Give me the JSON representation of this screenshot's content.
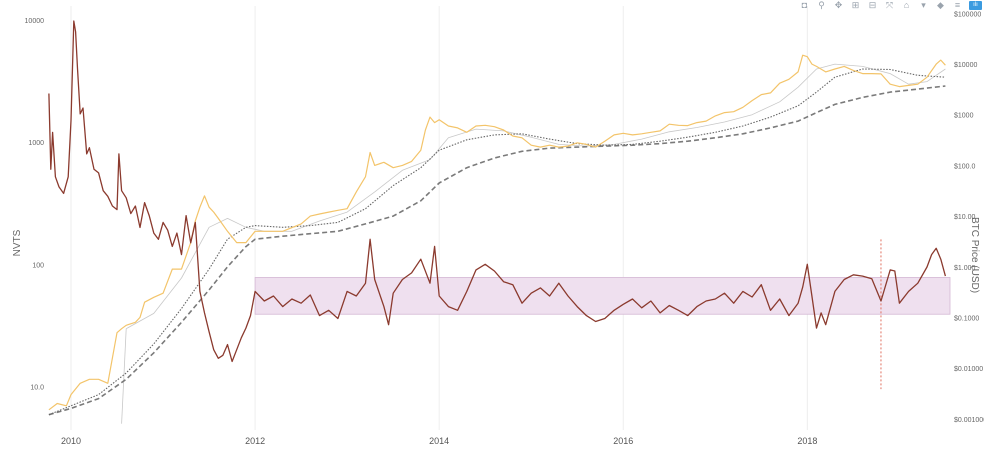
{
  "toolbar": {
    "buttons": [
      {
        "name": "camera-icon",
        "glyph": "◘"
      },
      {
        "name": "zoom-icon",
        "glyph": "⚲"
      },
      {
        "name": "pan-icon",
        "glyph": "✥"
      },
      {
        "name": "zoom-in-icon",
        "glyph": "⊞"
      },
      {
        "name": "zoom-out-icon",
        "glyph": "⊟"
      },
      {
        "name": "autoscale-icon",
        "glyph": "⤧"
      },
      {
        "name": "home-icon",
        "glyph": "⌂"
      },
      {
        "name": "hover-closest-icon",
        "glyph": "▾"
      },
      {
        "name": "hover-compare-icon",
        "glyph": "◆"
      },
      {
        "name": "spike-lines-icon",
        "glyph": "≡"
      },
      {
        "name": "plotly-logo-icon",
        "glyph": "ılı"
      }
    ]
  },
  "chart_data": {
    "type": "line",
    "title": "",
    "xlabel": "",
    "ylabel_left": "NVTS",
    "ylabel_right": "BTC Price (USD)",
    "x_ticks": [
      "2010",
      "2012",
      "2014",
      "2016",
      "2018"
    ],
    "x_range": [
      2009.75,
      2019.55
    ],
    "y_left_ticks": [
      "10.0",
      "100",
      "1000",
      "10000"
    ],
    "y_left_range_log": [
      4.4,
      13000
    ],
    "y_right_ticks": [
      "$0.001000",
      "$0.01000",
      "$0.1000",
      "$1.000",
      "$10.00",
      "$100.0",
      "$1000",
      "$10000",
      "$100000"
    ],
    "y_right_range_log": [
      0.0006,
      140000
    ],
    "band": {
      "x_start": 2012.0,
      "x_end": 2019.55,
      "nvts_low": 39,
      "nvts_high": 78,
      "color": "#efe0ef"
    },
    "marker_line": {
      "x": 2018.8,
      "nvts_low": 9.5,
      "nvts_high": 160,
      "color": "#e07060"
    },
    "colors": {
      "nvts": "#8b3a2e",
      "price": "#f3c46a",
      "sma_dotted": "#666666",
      "sma_dashed": "#7a7a7a",
      "sma_thin": "#c8c8c8",
      "grid": "#eeeeee"
    },
    "series": [
      {
        "name": "NVTS",
        "axis": "left",
        "x": [
          2009.76,
          2009.78,
          2009.8,
          2009.83,
          2009.87,
          2009.92,
          2009.97,
          2010.0,
          2010.03,
          2010.05,
          2010.07,
          2010.1,
          2010.13,
          2010.17,
          2010.2,
          2010.25,
          2010.3,
          2010.35,
          2010.4,
          2010.45,
          2010.5,
          2010.52,
          2010.55,
          2010.6,
          2010.65,
          2010.7,
          2010.75,
          2010.8,
          2010.85,
          2010.9,
          2010.95,
          2011.0,
          2011.05,
          2011.1,
          2011.15,
          2011.2,
          2011.25,
          2011.3,
          2011.35,
          2011.4,
          2011.45,
          2011.5,
          2011.55,
          2011.6,
          2011.65,
          2011.7,
          2011.75,
          2011.8,
          2011.85,
          2011.9,
          2011.95,
          2012.0,
          2012.1,
          2012.2,
          2012.3,
          2012.4,
          2012.5,
          2012.6,
          2012.7,
          2012.8,
          2012.9,
          2013.0,
          2013.1,
          2013.2,
          2013.25,
          2013.3,
          2013.4,
          2013.45,
          2013.5,
          2013.6,
          2013.7,
          2013.8,
          2013.9,
          2013.95,
          2014.0,
          2014.1,
          2014.2,
          2014.3,
          2014.4,
          2014.5,
          2014.6,
          2014.7,
          2014.8,
          2014.9,
          2015.0,
          2015.1,
          2015.2,
          2015.3,
          2015.4,
          2015.5,
          2015.6,
          2015.7,
          2015.8,
          2015.9,
          2016.0,
          2016.1,
          2016.2,
          2016.3,
          2016.4,
          2016.5,
          2016.6,
          2016.7,
          2016.8,
          2016.9,
          2017.0,
          2017.1,
          2017.2,
          2017.3,
          2017.4,
          2017.5,
          2017.6,
          2017.7,
          2017.8,
          2017.9,
          2017.95,
          2018.0,
          2018.05,
          2018.1,
          2018.15,
          2018.2,
          2018.3,
          2018.4,
          2018.5,
          2018.6,
          2018.7,
          2018.8,
          2018.9,
          2018.95,
          2019.0,
          2019.1,
          2019.2,
          2019.3,
          2019.35,
          2019.4,
          2019.45,
          2019.5
        ],
        "y": [
          2500,
          600,
          1200,
          520,
          430,
          380,
          520,
          1500,
          9800,
          8000,
          4000,
          1700,
          1900,
          800,
          900,
          600,
          560,
          400,
          360,
          300,
          280,
          800,
          400,
          350,
          260,
          300,
          200,
          320,
          250,
          180,
          160,
          220,
          190,
          140,
          180,
          120,
          250,
          150,
          220,
          60,
          40,
          28,
          20,
          17,
          18,
          22,
          16,
          20,
          25,
          30,
          38,
          60,
          50,
          55,
          45,
          52,
          48,
          56,
          38,
          42,
          36,
          60,
          55,
          70,
          160,
          75,
          45,
          32,
          58,
          75,
          85,
          110,
          70,
          140,
          55,
          45,
          42,
          60,
          90,
          100,
          88,
          72,
          68,
          48,
          58,
          64,
          55,
          70,
          55,
          45,
          38,
          34,
          36,
          42,
          47,
          52,
          44,
          50,
          40,
          46,
          42,
          38,
          45,
          50,
          52,
          58,
          48,
          60,
          54,
          68,
          42,
          52,
          38,
          48,
          65,
          100,
          55,
          30,
          40,
          32,
          60,
          75,
          82,
          80,
          76,
          50,
          90,
          88,
          48,
          60,
          70,
          95,
          120,
          135,
          110,
          80
        ]
      },
      {
        "name": "BTC Price",
        "axis": "right",
        "x": [
          2009.76,
          2009.85,
          2009.95,
          2010.0,
          2010.1,
          2010.2,
          2010.3,
          2010.4,
          2010.5,
          2010.55,
          2010.6,
          2010.7,
          2010.75,
          2010.8,
          2010.9,
          2011.0,
          2011.1,
          2011.2,
          2011.3,
          2011.35,
          2011.4,
          2011.45,
          2011.5,
          2011.55,
          2011.6,
          2011.7,
          2011.8,
          2011.9,
          2012.0,
          2012.1,
          2012.2,
          2012.3,
          2012.5,
          2012.6,
          2012.7,
          2012.8,
          2012.9,
          2013.0,
          2013.1,
          2013.2,
          2013.25,
          2013.3,
          2013.4,
          2013.5,
          2013.6,
          2013.7,
          2013.8,
          2013.85,
          2013.9,
          2013.95,
          2014.0,
          2014.1,
          2014.2,
          2014.3,
          2014.4,
          2014.5,
          2014.6,
          2014.7,
          2014.8,
          2014.9,
          2015.0,
          2015.1,
          2015.2,
          2015.3,
          2015.4,
          2015.5,
          2015.6,
          2015.7,
          2015.8,
          2015.9,
          2016.0,
          2016.1,
          2016.2,
          2016.3,
          2016.4,
          2016.5,
          2016.6,
          2016.7,
          2016.8,
          2016.9,
          2017.0,
          2017.1,
          2017.2,
          2017.3,
          2017.4,
          2017.5,
          2017.6,
          2017.7,
          2017.8,
          2017.9,
          2017.95,
          2018.0,
          2018.05,
          2018.1,
          2018.2,
          2018.3,
          2018.4,
          2018.5,
          2018.6,
          2018.7,
          2018.8,
          2018.9,
          2019.0,
          2019.1,
          2019.2,
          2019.3,
          2019.4,
          2019.45,
          2019.5
        ],
        "y": [
          0.0015,
          0.002,
          0.0018,
          0.003,
          0.005,
          0.006,
          0.006,
          0.005,
          0.05,
          0.06,
          0.07,
          0.08,
          0.1,
          0.2,
          0.25,
          0.3,
          0.9,
          0.9,
          3,
          8,
          15,
          25,
          15,
          12,
          9,
          5,
          3,
          3,
          5,
          5,
          5,
          5,
          7,
          10,
          11,
          12,
          13,
          14,
          30,
          60,
          180,
          100,
          115,
          90,
          100,
          120,
          200,
          500,
          900,
          700,
          800,
          600,
          550,
          450,
          600,
          620,
          580,
          500,
          380,
          350,
          250,
          230,
          250,
          230,
          240,
          280,
          260,
          230,
          300,
          400,
          430,
          400,
          420,
          450,
          480,
          650,
          620,
          610,
          700,
          750,
          950,
          1100,
          1150,
          1400,
          1900,
          2500,
          2700,
          4200,
          5000,
          7000,
          15000,
          14000,
          10000,
          9000,
          7000,
          8000,
          9000,
          7500,
          6500,
          6500,
          6400,
          4000,
          3600,
          3800,
          4000,
          5500,
          10000,
          12000,
          9500
        ]
      },
      {
        "name": "SMA dotted",
        "axis": "right",
        "x": [
          2009.76,
          2010.0,
          2010.3,
          2010.6,
          2010.9,
          2011.2,
          2011.5,
          2011.7,
          2011.9,
          2012.0,
          2012.3,
          2012.6,
          2012.9,
          2013.2,
          2013.5,
          2013.8,
          2014.0,
          2014.3,
          2014.6,
          2014.9,
          2015.2,
          2015.5,
          2015.8,
          2016.1,
          2016.4,
          2016.7,
          2017.0,
          2017.3,
          2017.6,
          2017.9,
          2018.1,
          2018.3,
          2018.6,
          2018.9,
          2019.2,
          2019.5
        ],
        "y": [
          0.0012,
          0.0018,
          0.003,
          0.008,
          0.03,
          0.15,
          0.9,
          3.5,
          6,
          6.5,
          6,
          6.5,
          7.5,
          14,
          40,
          90,
          200,
          320,
          400,
          420,
          330,
          270,
          250,
          260,
          300,
          360,
          450,
          600,
          900,
          1500,
          2800,
          5500,
          8000,
          7800,
          6000,
          5500
        ]
      },
      {
        "name": "SMA dashed",
        "axis": "right",
        "x": [
          2009.76,
          2010.0,
          2010.3,
          2010.6,
          2010.9,
          2011.2,
          2011.5,
          2011.7,
          2011.9,
          2012.0,
          2012.3,
          2012.6,
          2012.9,
          2013.2,
          2013.5,
          2013.8,
          2014.0,
          2014.3,
          2014.6,
          2014.9,
          2015.2,
          2015.5,
          2015.8,
          2016.1,
          2016.4,
          2016.7,
          2017.0,
          2017.3,
          2017.6,
          2017.9,
          2018.1,
          2018.3,
          2018.6,
          2018.9,
          2019.2,
          2019.5
        ],
        "y": [
          0.0012,
          0.0016,
          0.0025,
          0.006,
          0.02,
          0.08,
          0.35,
          1.0,
          2.5,
          3.5,
          4,
          4.5,
          5,
          7,
          10,
          20,
          45,
          90,
          140,
          190,
          220,
          230,
          240,
          250,
          270,
          300,
          350,
          420,
          550,
          750,
          1100,
          1600,
          2200,
          2800,
          3200,
          3700
        ]
      },
      {
        "name": "SMA thin",
        "axis": "right",
        "x": [
          2010.55,
          2010.6,
          2010.9,
          2011.2,
          2011.5,
          2011.7,
          2011.9,
          2012.1,
          2012.4,
          2012.7,
          2013.0,
          2013.3,
          2013.6,
          2013.9,
          2014.1,
          2014.4,
          2014.7,
          2015.0,
          2015.3,
          2015.6,
          2015.9,
          2016.2,
          2016.5,
          2016.8,
          2017.1,
          2017.4,
          2017.7,
          2017.9,
          2018.1,
          2018.3,
          2018.6,
          2018.9,
          2019.1,
          2019.3,
          2019.5
        ],
        "y": [
          0.0008,
          0.06,
          0.12,
          0.6,
          6,
          9,
          6,
          5,
          5,
          8,
          12,
          30,
          80,
          130,
          350,
          520,
          480,
          360,
          260,
          240,
          260,
          330,
          460,
          560,
          720,
          1000,
          1800,
          3500,
          8000,
          10000,
          9000,
          6500,
          4000,
          4500,
          8000
        ]
      }
    ]
  }
}
